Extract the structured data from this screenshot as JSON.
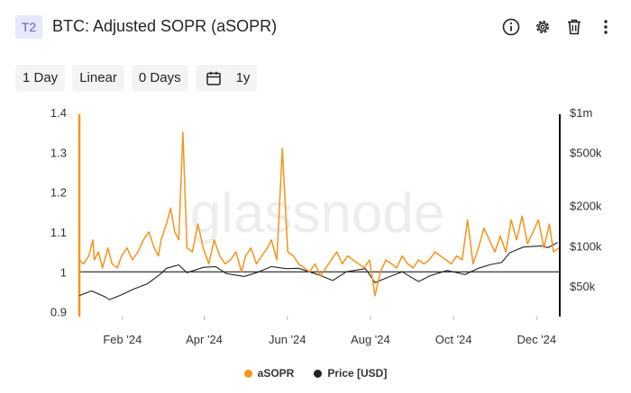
{
  "header": {
    "badge": "T2",
    "title": "BTC: Adjusted SOPR (aSOPR)",
    "icons": [
      "info-icon",
      "gear-icon",
      "trash-icon",
      "more-vertical-icon"
    ]
  },
  "toolbar": {
    "resolution": "1 Day",
    "scale": "Linear",
    "moving_average": "0 Days",
    "range": "1y",
    "range_icon": "calendar-icon"
  },
  "watermark": "glassnode",
  "colors": {
    "asopr": "#f7931a",
    "price": "#222222",
    "baseline": "#000000"
  },
  "chart_data": {
    "type": "line",
    "title": "BTC: Adjusted SOPR (aSOPR)",
    "x_ticks": [
      "Feb '24",
      "Apr '24",
      "Jun '24",
      "Aug '24",
      "Oct '24",
      "Dec '24"
    ],
    "y_left": {
      "ticks": [
        "1.4",
        "1.3",
        "1.2",
        "1.1",
        "1",
        "0.9"
      ],
      "range": [
        0.89,
        1.4
      ],
      "baseline": 1.0
    },
    "y_right": {
      "ticks": [
        "$1m",
        "$500k",
        "$200k",
        "$100k",
        "$50k"
      ],
      "scale": "log",
      "range": [
        30000,
        1000000
      ]
    },
    "series": [
      {
        "name": "aSOPR",
        "axis": "left",
        "x": [
          "2024-01-01",
          "2024-01-04",
          "2024-01-08",
          "2024-01-11",
          "2024-01-12",
          "2024-01-15",
          "2024-01-18",
          "2024-01-22",
          "2024-01-25",
          "2024-01-29",
          "2024-02-01",
          "2024-02-05",
          "2024-02-09",
          "2024-02-13",
          "2024-02-17",
          "2024-02-21",
          "2024-02-25",
          "2024-02-28",
          "2024-03-01",
          "2024-03-05",
          "2024-03-08",
          "2024-03-11",
          "2024-03-14",
          "2024-03-17",
          "2024-03-20",
          "2024-03-24",
          "2024-03-28",
          "2024-04-01",
          "2024-04-05",
          "2024-04-09",
          "2024-04-13",
          "2024-04-17",
          "2024-04-21",
          "2024-04-25",
          "2024-04-29",
          "2024-05-02",
          "2024-05-06",
          "2024-05-10",
          "2024-05-14",
          "2024-05-18",
          "2024-05-21",
          "2024-05-25",
          "2024-05-29",
          "2024-06-02",
          "2024-06-06",
          "2024-06-10",
          "2024-06-14",
          "2024-06-18",
          "2024-06-22",
          "2024-06-26",
          "2024-06-30",
          "2024-07-04",
          "2024-07-08",
          "2024-07-12",
          "2024-07-16",
          "2024-07-20",
          "2024-07-24",
          "2024-07-28",
          "2024-08-01",
          "2024-08-05",
          "2024-08-09",
          "2024-08-13",
          "2024-08-17",
          "2024-08-21",
          "2024-08-25",
          "2024-08-29",
          "2024-09-02",
          "2024-09-06",
          "2024-09-10",
          "2024-09-14",
          "2024-09-18",
          "2024-09-22",
          "2024-09-26",
          "2024-09-30",
          "2024-10-04",
          "2024-10-08",
          "2024-10-12",
          "2024-10-16",
          "2024-10-20",
          "2024-10-24",
          "2024-10-28",
          "2024-11-01",
          "2024-11-05",
          "2024-11-09",
          "2024-11-13",
          "2024-11-17",
          "2024-11-21",
          "2024-11-25",
          "2024-11-29",
          "2024-12-03",
          "2024-12-07",
          "2024-12-11",
          "2024-12-14",
          "2024-12-18"
        ],
        "values": [
          1.03,
          1.02,
          1.04,
          1.08,
          1.03,
          1.05,
          1.01,
          1.06,
          1.02,
          1.01,
          1.04,
          1.06,
          1.03,
          1.05,
          1.08,
          1.1,
          1.06,
          1.04,
          1.08,
          1.12,
          1.16,
          1.1,
          1.08,
          1.35,
          1.06,
          1.05,
          1.12,
          1.06,
          1.02,
          1.08,
          1.04,
          1.02,
          1.03,
          1.05,
          1.0,
          1.04,
          1.06,
          1.02,
          1.04,
          1.06,
          1.08,
          1.03,
          1.31,
          1.05,
          1.04,
          1.02,
          1.01,
          1.0,
          1.02,
          0.99,
          1.01,
          1.03,
          1.05,
          1.02,
          1.04,
          1.03,
          1.02,
          1.01,
          1.03,
          0.94,
          1.0,
          1.03,
          1.02,
          1.01,
          1.04,
          1.02,
          1.01,
          1.03,
          1.02,
          1.03,
          1.05,
          1.04,
          1.03,
          1.02,
          1.04,
          1.03,
          1.13,
          1.02,
          1.06,
          1.11,
          1.08,
          1.05,
          1.09,
          1.05,
          1.13,
          1.08,
          1.14,
          1.07,
          1.1,
          1.13,
          1.06,
          1.12,
          1.05,
          1.06
        ]
      },
      {
        "name": "Price [USD]",
        "axis": "right",
        "x": [
          "2024-01-01",
          "2024-01-10",
          "2024-01-20",
          "2024-01-23",
          "2024-02-01",
          "2024-02-10",
          "2024-02-20",
          "2024-03-01",
          "2024-03-05",
          "2024-03-14",
          "2024-03-20",
          "2024-04-01",
          "2024-04-10",
          "2024-04-18",
          "2024-05-01",
          "2024-05-10",
          "2024-05-21",
          "2024-06-01",
          "2024-06-10",
          "2024-06-24",
          "2024-07-05",
          "2024-07-15",
          "2024-07-29",
          "2024-08-05",
          "2024-08-15",
          "2024-08-25",
          "2024-09-06",
          "2024-09-15",
          "2024-09-27",
          "2024-10-10",
          "2024-10-20",
          "2024-10-29",
          "2024-11-06",
          "2024-11-12",
          "2024-11-22",
          "2024-12-05",
          "2024-12-10",
          "2024-12-17"
        ],
        "values": [
          42500,
          46000,
          41500,
          39500,
          43000,
          47500,
          52000,
          62000,
          68000,
          72000,
          63000,
          69000,
          70000,
          62000,
          59000,
          63000,
          70000,
          67500,
          68000,
          61000,
          55000,
          64000,
          67500,
          53000,
          58500,
          64000,
          54000,
          60000,
          65500,
          61000,
          68000,
          72500,
          75000,
          89000,
          98000,
          100000,
          97000,
          106000
        ]
      }
    ],
    "legend": {
      "placement": "bottom-center",
      "entries": [
        "aSOPR",
        "Price [USD]"
      ]
    },
    "grid": false
  }
}
